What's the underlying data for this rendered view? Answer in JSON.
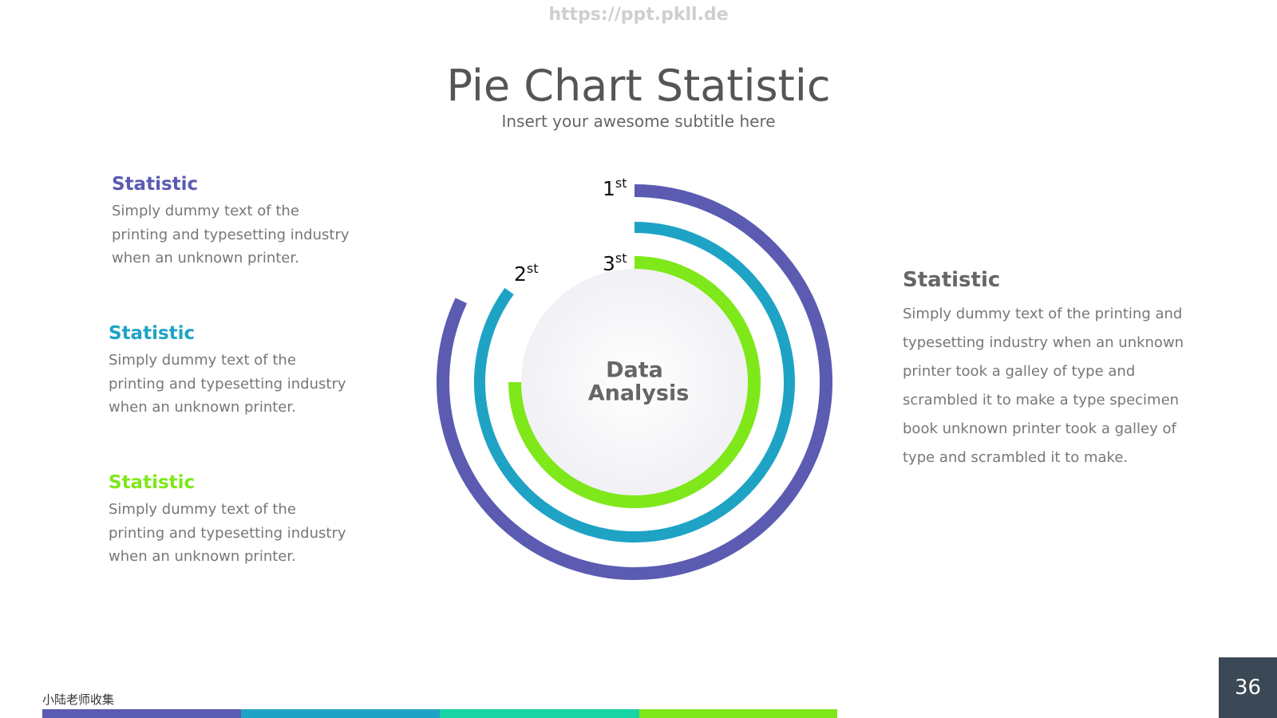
{
  "watermark": "https://ppt.pkll.de",
  "chart_data": {
    "type": "radial_bar",
    "title": "Pie Chart Statistic",
    "subtitle": "Insert your awesome subtitle here",
    "center_label": [
      "Data",
      "Analysis"
    ],
    "ylim": [
      0,
      100
    ],
    "series": [
      {
        "rank": "1",
        "suffix": "st",
        "color": "#5a5bb1",
        "values": [
          82
        ]
      },
      {
        "rank": "2",
        "suffix": "st",
        "color": "#1ea3c5",
        "values": [
          85
        ]
      },
      {
        "rank": "3",
        "suffix": "st",
        "color": "#7ee81a",
        "values": [
          75
        ]
      }
    ]
  },
  "left_items": [
    {
      "title": "Statistic",
      "text": "Simply dummy text of the printing and typesetting industry when an unknown printer."
    },
    {
      "title": "Statistic",
      "text": "Simply dummy text of the printing and typesetting industry when an unknown printer."
    },
    {
      "title": "Statistic",
      "text": "Simply dummy text of the printing and typesetting industry when an unknown printer."
    }
  ],
  "right_item": {
    "title": "Statistic",
    "text": "Simply dummy text of the printing and typesetting industry when an unknown printer took a galley of type and scrambled it to make a type specimen book unknown printer took a galley of type and scrambled it to make."
  },
  "footer": "小陆老师收集",
  "page_number": "36"
}
